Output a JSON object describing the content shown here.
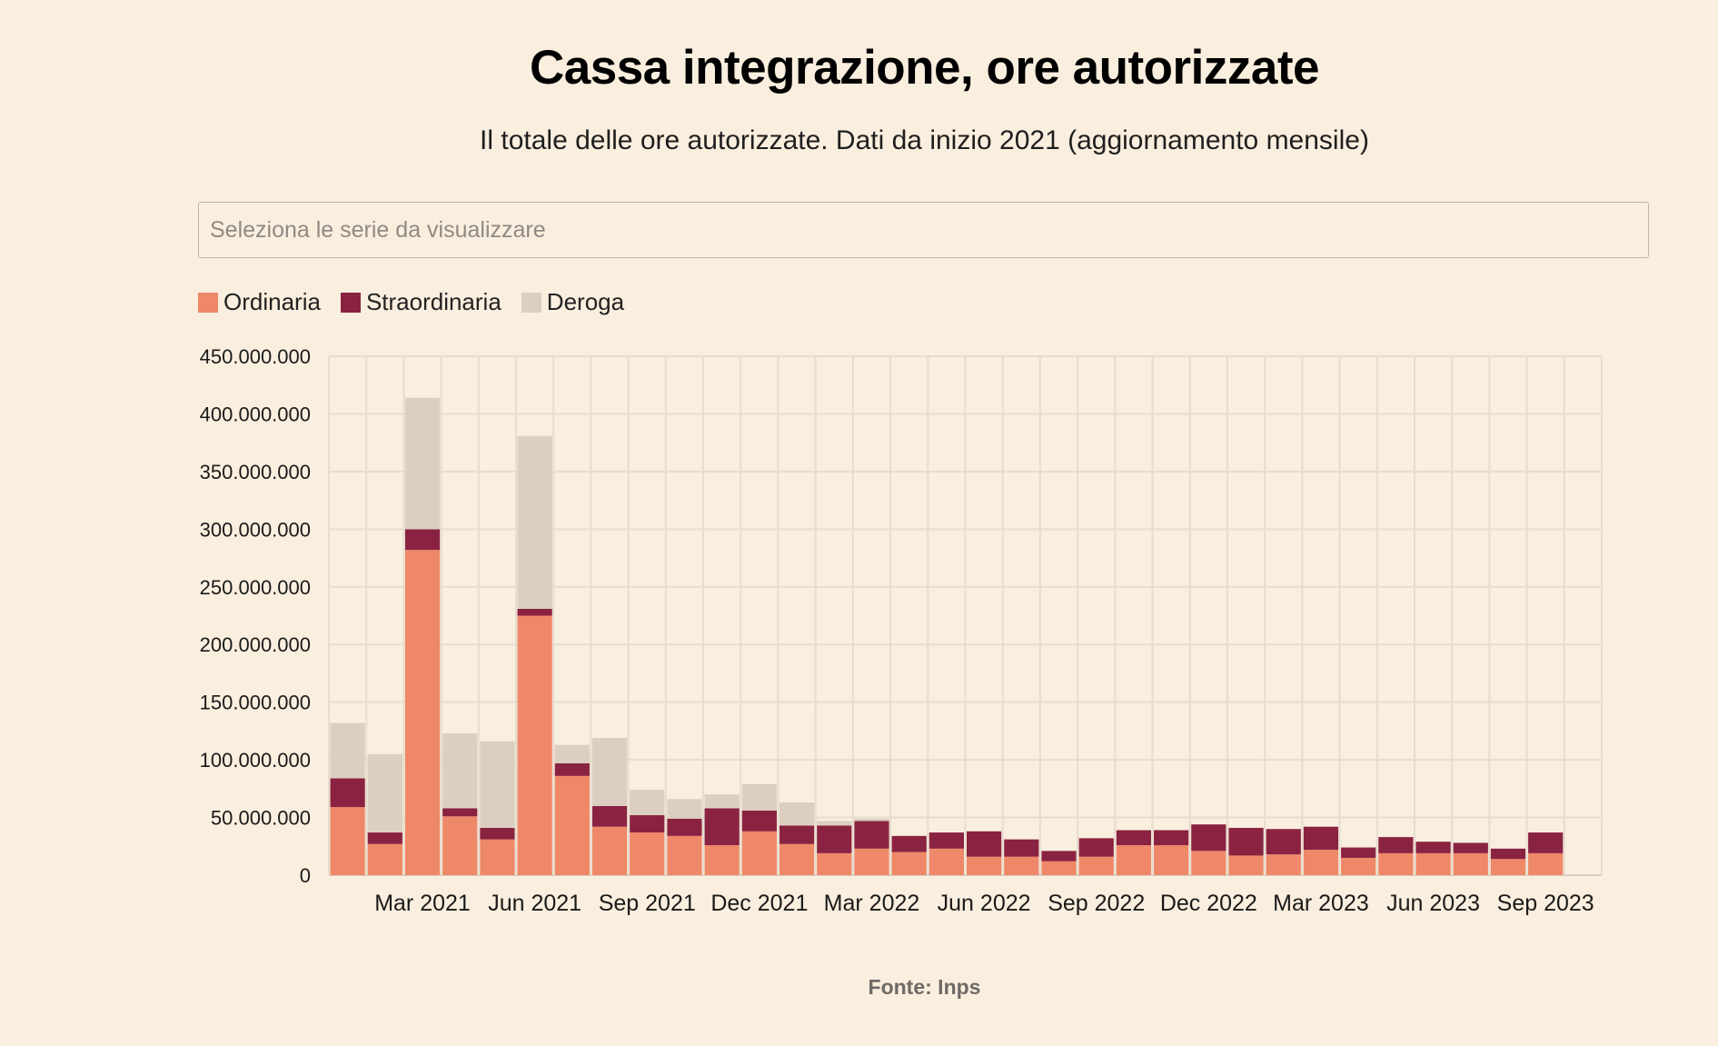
{
  "header": {
    "title": "Cassa integrazione, ore autorizzate",
    "subtitle": "Il totale delle ore autorizzate. Dati da inizio 2021 (aggiornamento mensile)"
  },
  "controls": {
    "series_placeholder": "Seleziona le serie da visualizzare"
  },
  "footer": {
    "source": "Fonte: Inps"
  },
  "chart_data": {
    "type": "bar",
    "stacked": true,
    "title": "Cassa integrazione, ore autorizzate",
    "subtitle": "Il totale delle ore autorizzate. Dati da inizio 2021 (aggiornamento mensile)",
    "categories": [
      "Jan 2021",
      "Feb 2021",
      "Mar 2021",
      "Apr 2021",
      "May 2021",
      "Jun 2021",
      "Jul 2021",
      "Aug 2021",
      "Sep 2021",
      "Oct 2021",
      "Nov 2021",
      "Dec 2021",
      "Jan 2022",
      "Feb 2022",
      "Mar 2022",
      "Apr 2022",
      "May 2022",
      "Jun 2022",
      "Jul 2022",
      "Aug 2022",
      "Sep 2022",
      "Oct 2022",
      "Nov 2022",
      "Dec 2022",
      "Jan 2023",
      "Feb 2023",
      "Mar 2023",
      "Apr 2023",
      "May 2023",
      "Jun 2023",
      "Jul 2023",
      "Aug 2023",
      "Sep 2023",
      "Oct 2023"
    ],
    "series": [
      {
        "name": "Ordinaria",
        "color": "#ef8868",
        "values": [
          59000000,
          27000000,
          282000000,
          51000000,
          31000000,
          225000000,
          86000000,
          42000000,
          37000000,
          34000000,
          26000000,
          38000000,
          27000000,
          19000000,
          23000000,
          20000000,
          23000000,
          16000000,
          16000000,
          12000000,
          16000000,
          26000000,
          26000000,
          21000000,
          17000000,
          18000000,
          22000000,
          15000000,
          19000000,
          19000000,
          19000000,
          14000000,
          19000000,
          0
        ]
      },
      {
        "name": "Straordinaria",
        "color": "#8a2341",
        "values": [
          25000000,
          10000000,
          18000000,
          7000000,
          10000000,
          6000000,
          11000000,
          18000000,
          15000000,
          15000000,
          32000000,
          18000000,
          16000000,
          24000000,
          24000000,
          14000000,
          14000000,
          22000000,
          15000000,
          9000000,
          16000000,
          13000000,
          13000000,
          23000000,
          24000000,
          22000000,
          20000000,
          9000000,
          14000000,
          10000000,
          9000000,
          9000000,
          18000000,
          0
        ]
      },
      {
        "name": "Deroga",
        "color": "#dccfc0",
        "values": [
          48000000,
          68000000,
          114000000,
          65000000,
          75000000,
          150000000,
          16000000,
          59000000,
          22000000,
          17000000,
          12000000,
          23000000,
          20000000,
          4000000,
          2000000,
          0,
          0,
          0,
          0,
          0,
          0,
          0,
          0,
          0,
          0,
          0,
          0,
          0,
          0,
          0,
          0,
          0,
          0,
          0
        ]
      }
    ],
    "x_tick_labels": [
      {
        "category": "Mar 2021",
        "label": "Mar 2021"
      },
      {
        "category": "Jun 2021",
        "label": "Jun 2021"
      },
      {
        "category": "Sep 2021",
        "label": "Sep 2021"
      },
      {
        "category": "Dec 2021",
        "label": "Dec 2021"
      },
      {
        "category": "Mar 2022",
        "label": "Mar 2022"
      },
      {
        "category": "Jun 2022",
        "label": "Jun 2022"
      },
      {
        "category": "Sep 2022",
        "label": "Sep 2022"
      },
      {
        "category": "Dec 2022",
        "label": "Dec 2022"
      },
      {
        "category": "Mar 2023",
        "label": "Mar 2023"
      },
      {
        "category": "Jun 2023",
        "label": "Jun 2023"
      },
      {
        "category": "Sep 2023",
        "label": "Sep 2023"
      }
    ],
    "y_ticks": [
      {
        "value": 0,
        "label": "0"
      },
      {
        "value": 50000000,
        "label": "50.000.000"
      },
      {
        "value": 100000000,
        "label": "100.000.000"
      },
      {
        "value": 150000000,
        "label": "150.000.000"
      },
      {
        "value": 200000000,
        "label": "200.000.000"
      },
      {
        "value": 250000000,
        "label": "250.000.000"
      },
      {
        "value": 300000000,
        "label": "300.000.000"
      },
      {
        "value": 350000000,
        "label": "350.000.000"
      },
      {
        "value": 400000000,
        "label": "400.000.000"
      },
      {
        "value": 450000000,
        "label": "450.000.000"
      }
    ],
    "ylim": [
      0,
      450000000
    ],
    "xlabel": "",
    "ylabel": "",
    "grid": true,
    "legend_position": "top-left",
    "source": "Fonte: Inps",
    "colors": {
      "background": "#faeede",
      "grid": "#e6dccf",
      "axis": "#d9cfc2"
    }
  }
}
